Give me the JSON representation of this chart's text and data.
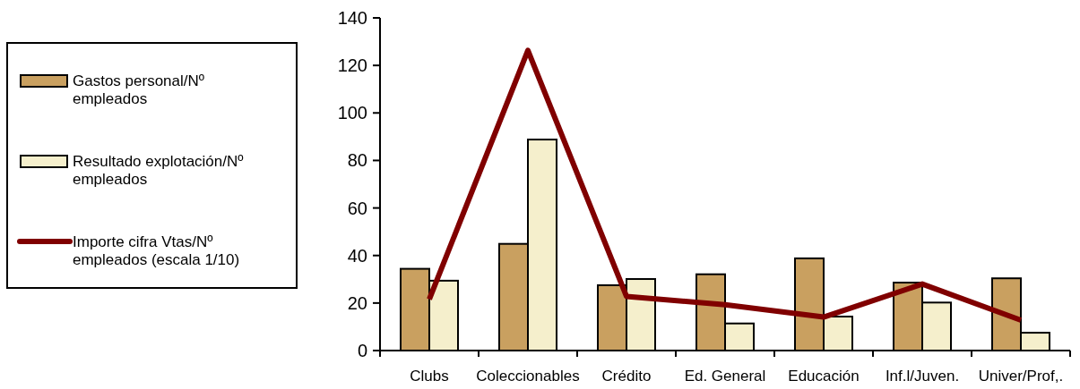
{
  "chart_data": {
    "type": "bar",
    "categories": [
      "Clubs",
      "Coleccionables",
      "Crédito",
      "Ed. General",
      "Educación",
      "Inf.l/Juven.",
      "Univer/Prof,."
    ],
    "series": [
      {
        "name": "Gastos personal/Nº empleados",
        "color": "#c9a060",
        "values": [
          34.4,
          44.9,
          27.5,
          32.1,
          38.8,
          28.6,
          30.4
        ]
      },
      {
        "name": "Resultado explotación/Nº empleados",
        "color": "#f5efcc",
        "values": [
          29.4,
          88.8,
          30.1,
          11.4,
          14.3,
          20.2,
          7.5
        ]
      },
      {
        "name": "Importe cifra Vtas/Nº empleados (escala 1/10)",
        "type": "line",
        "color": "#800000",
        "values": [
          21.6,
          126.3,
          22.8,
          19.3,
          14.1,
          28.0,
          12.8
        ]
      }
    ],
    "ylim": [
      0,
      140
    ],
    "yticks": [
      0,
      20,
      40,
      60,
      80,
      100,
      120,
      140
    ],
    "grid": false,
    "legend": "left"
  }
}
